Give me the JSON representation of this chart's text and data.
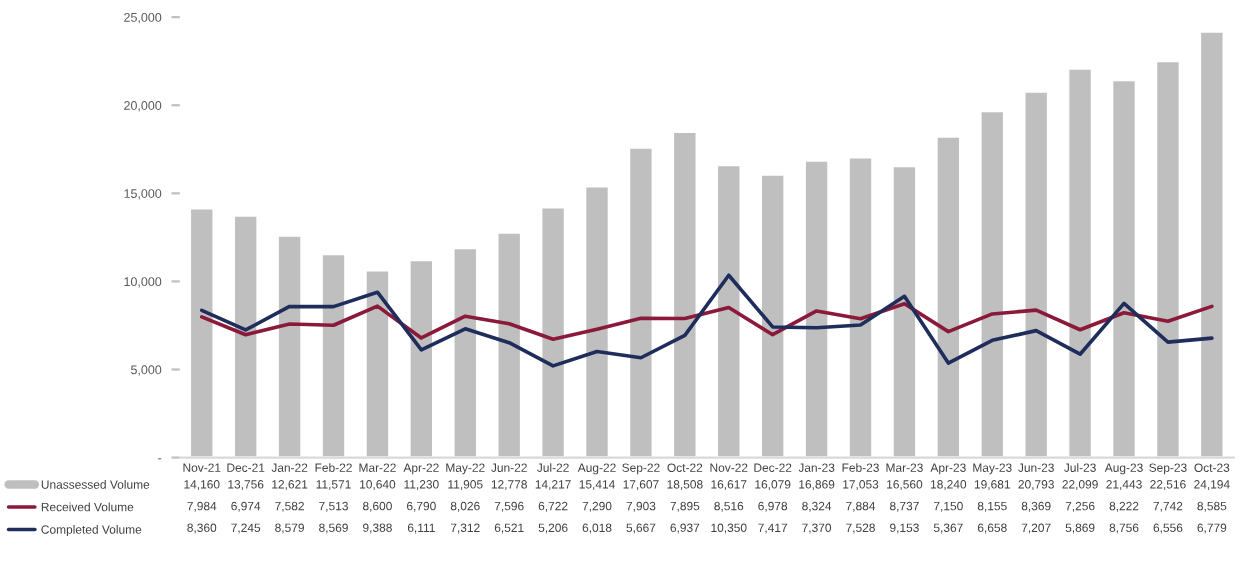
{
  "chart_data": {
    "type": "bar",
    "categories": [
      "Nov-21",
      "Dec-21",
      "Jan-22",
      "Feb-22",
      "Mar-22",
      "Apr-22",
      "May-22",
      "Jun-22",
      "Jul-22",
      "Aug-22",
      "Sep-22",
      "Oct-22",
      "Nov-22",
      "Dec-22",
      "Jan-23",
      "Feb-23",
      "Mar-23",
      "Apr-23",
      "May-23",
      "Jun-23",
      "Jul-23",
      "Aug-23",
      "Sep-23",
      "Oct-23"
    ],
    "series": [
      {
        "name": "Unassessed Volume",
        "color": "#bfbfbf",
        "values": [
          14160,
          13756,
          12621,
          11571,
          10640,
          11230,
          11905,
          12778,
          14217,
          15414,
          17607,
          18508,
          16617,
          16079,
          16869,
          17053,
          16560,
          18240,
          19681,
          20793,
          22099,
          21443,
          22516,
          24194
        ],
        "value_labels": [
          "14,160",
          "13,756",
          "12,621",
          "11,571",
          "10,640",
          "11,230",
          "11,905",
          "12,778",
          "14,217",
          "15,414",
          "17,607",
          "18,508",
          "16,617",
          "16,079",
          "16,869",
          "17,053",
          "16,560",
          "18,240",
          "19,681",
          "20,793",
          "22,099",
          "21,443",
          "22,516",
          "24,194"
        ]
      },
      {
        "name": "Received Volume",
        "type": "line",
        "color": "#8b1a3a",
        "values": [
          7984,
          6974,
          7582,
          7513,
          8600,
          6790,
          8026,
          7596,
          6722,
          7290,
          7903,
          7895,
          8516,
          6978,
          8324,
          7884,
          8737,
          7150,
          8155,
          8369,
          7256,
          8222,
          7742,
          8585
        ],
        "value_labels": [
          "7,984",
          "6,974",
          "7,582",
          "7,513",
          "8,600",
          "6,790",
          "8,026",
          "7,596",
          "6,722",
          "7,290",
          "7,903",
          "7,895",
          "8,516",
          "6,978",
          "8,324",
          "7,884",
          "8,737",
          "7,150",
          "8,155",
          "8,369",
          "7,256",
          "8,222",
          "7,742",
          "8,585"
        ]
      },
      {
        "name": "Completed Volume",
        "type": "line",
        "color": "#1f2d5c",
        "values": [
          8360,
          7245,
          8579,
          8569,
          9388,
          6111,
          7312,
          6521,
          5206,
          6018,
          5667,
          6937,
          10350,
          7417,
          7370,
          7528,
          9153,
          5367,
          6658,
          7207,
          5869,
          8756,
          6556,
          6779
        ],
        "value_labels": [
          "8,360",
          "7,245",
          "8,579",
          "8,569",
          "9,388",
          "6,111",
          "7,312",
          "6,521",
          "5,206",
          "6,018",
          "5,667",
          "6,937",
          "10,350",
          "7,417",
          "7,370",
          "7,528",
          "9,153",
          "5,367",
          "6,658",
          "7,207",
          "5,869",
          "8,756",
          "6,556",
          "6,779"
        ]
      }
    ],
    "ylim": [
      0,
      25000
    ],
    "yticks": [
      {
        "value": 0,
        "label": "-"
      },
      {
        "value": 5000,
        "label": "5,000"
      },
      {
        "value": 10000,
        "label": "10,000"
      },
      {
        "value": 15000,
        "label": "15,000"
      },
      {
        "value": 20000,
        "label": "20,000"
      },
      {
        "value": 25000,
        "label": "25,000"
      }
    ],
    "legend": "bottom left",
    "grid": false,
    "marker": "none",
    "line_style": "solid"
  }
}
